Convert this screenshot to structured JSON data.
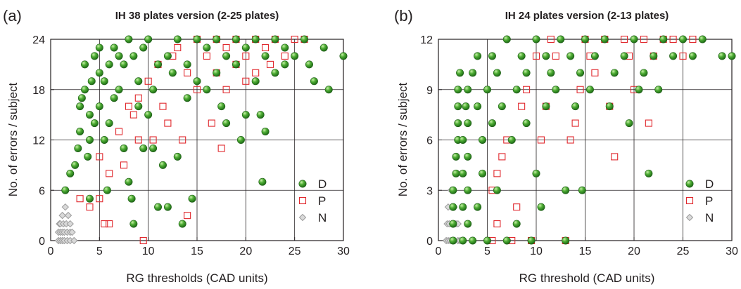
{
  "colors": {
    "D": "#3f9e2f",
    "P": "#e0282d",
    "N": "#9b9b9b",
    "axis": "#231f20"
  },
  "chart_data": [
    {
      "type": "scatter",
      "panel_label": "(a)",
      "title": "IH 38 plates version (2-25 plates)",
      "xlabel": "RG thresholds (CAD units)",
      "ylabel": "No. of errors / subject",
      "xlim": [
        0,
        30
      ],
      "ylim": [
        0,
        24
      ],
      "xticks": [
        0,
        5,
        10,
        15,
        20,
        25,
        30
      ],
      "yticks": [
        0,
        6,
        12,
        18,
        24
      ],
      "grid": true,
      "legend_position": "bottom-right",
      "series": [
        {
          "name": "D",
          "points": [
            [
              1.5,
              6
            ],
            [
              2,
              8
            ],
            [
              2.5,
              9
            ],
            [
              2.8,
              11
            ],
            [
              3,
              13
            ],
            [
              3,
              16
            ],
            [
              3.2,
              17
            ],
            [
              3.5,
              18
            ],
            [
              3.5,
              21
            ],
            [
              3.8,
              10
            ],
            [
              4,
              5
            ],
            [
              4,
              12
            ],
            [
              4,
              15
            ],
            [
              4.2,
              19
            ],
            [
              4.5,
              22
            ],
            [
              4.5,
              14
            ],
            [
              5,
              20
            ],
            [
              5,
              16
            ],
            [
              5,
              23
            ],
            [
              5.5,
              19
            ],
            [
              5.5,
              12
            ],
            [
              5.8,
              6
            ],
            [
              6,
              21
            ],
            [
              6,
              14
            ],
            [
              6.5,
              23
            ],
            [
              6.5,
              17
            ],
            [
              7,
              22
            ],
            [
              7,
              18
            ],
            [
              7.5,
              21
            ],
            [
              7.5,
              11
            ],
            [
              8,
              24
            ],
            [
              8,
              7
            ],
            [
              8.3,
              5
            ],
            [
              8.5,
              22
            ],
            [
              8.5,
              2
            ],
            [
              9,
              19
            ],
            [
              9,
              16
            ],
            [
              9.5,
              23
            ],
            [
              9.5,
              11
            ],
            [
              10,
              24
            ],
            [
              10,
              15
            ],
            [
              10.5,
              18
            ],
            [
              10.5,
              11
            ],
            [
              11,
              21
            ],
            [
              11,
              4
            ],
            [
              11.5,
              9
            ],
            [
              12,
              22
            ],
            [
              12,
              4
            ],
            [
              12.5,
              20
            ],
            [
              13,
              24
            ],
            [
              13,
              10
            ],
            [
              13.5,
              2
            ],
            [
              14,
              21
            ],
            [
              14,
              17
            ],
            [
              14.5,
              5
            ],
            [
              15,
              24
            ],
            [
              15,
              19
            ],
            [
              16,
              23
            ],
            [
              16,
              18
            ],
            [
              17,
              24
            ],
            [
              17,
              20
            ],
            [
              17.5,
              16
            ],
            [
              18,
              22
            ],
            [
              18,
              14
            ],
            [
              19,
              24
            ],
            [
              19,
              21
            ],
            [
              19.5,
              12
            ],
            [
              20,
              23
            ],
            [
              20,
              15
            ],
            [
              21,
              24
            ],
            [
              21,
              19
            ],
            [
              21.5,
              15
            ],
            [
              21.7,
              7
            ],
            [
              22,
              22
            ],
            [
              22,
              13
            ],
            [
              23,
              24
            ],
            [
              23,
              20
            ],
            [
              24,
              23
            ],
            [
              24,
              21
            ],
            [
              25,
              22
            ],
            [
              26,
              24
            ],
            [
              26.5,
              21
            ],
            [
              27,
              19
            ],
            [
              28,
              23
            ],
            [
              28.5,
              18
            ],
            [
              30,
              22
            ]
          ]
        },
        {
          "name": "P",
          "points": [
            [
              3,
              5
            ],
            [
              4,
              4
            ],
            [
              5,
              5
            ],
            [
              5,
              10
            ],
            [
              5.5,
              2
            ],
            [
              6,
              2
            ],
            [
              6,
              8
            ],
            [
              7,
              13
            ],
            [
              7.5,
              9
            ],
            [
              8,
              16
            ],
            [
              8.5,
              15
            ],
            [
              9,
              17
            ],
            [
              9,
              12
            ],
            [
              9.5,
              0
            ],
            [
              10,
              19
            ],
            [
              10.5,
              12
            ],
            [
              11,
              21
            ],
            [
              11.5,
              16
            ],
            [
              12,
              14
            ],
            [
              12.5,
              22
            ],
            [
              13,
              23
            ],
            [
              13.5,
              12
            ],
            [
              14,
              20
            ],
            [
              14,
              3
            ],
            [
              15,
              24
            ],
            [
              15,
              18
            ],
            [
              16,
              22
            ],
            [
              16.5,
              14
            ],
            [
              17,
              24
            ],
            [
              17,
              20
            ],
            [
              17.5,
              11
            ],
            [
              18,
              23
            ],
            [
              18,
              18
            ],
            [
              19,
              24
            ],
            [
              19,
              21
            ],
            [
              20,
              22
            ],
            [
              20,
              19
            ],
            [
              21,
              24
            ],
            [
              21,
              20
            ],
            [
              22,
              23
            ],
            [
              22.5,
              21
            ],
            [
              23,
              24
            ],
            [
              24,
              22
            ],
            [
              25,
              24
            ],
            [
              26,
              24
            ]
          ]
        },
        {
          "name": "N",
          "points": [
            [
              0.8,
              0
            ],
            [
              0.8,
              1
            ],
            [
              0.9,
              2
            ],
            [
              1,
              0
            ],
            [
              1,
              1
            ],
            [
              1,
              2
            ],
            [
              1.2,
              0
            ],
            [
              1.2,
              1
            ],
            [
              1.2,
              3
            ],
            [
              1.3,
              2
            ],
            [
              1.4,
              0
            ],
            [
              1.4,
              1
            ],
            [
              1.5,
              4
            ],
            [
              1.6,
              2
            ],
            [
              1.7,
              0
            ],
            [
              1.7,
              1
            ],
            [
              1.8,
              3
            ],
            [
              2,
              0
            ],
            [
              2,
              1
            ],
            [
              2,
              2
            ],
            [
              2.2,
              1
            ],
            [
              2.4,
              0
            ]
          ]
        }
      ]
    },
    {
      "type": "scatter",
      "panel_label": "(b)",
      "title": "IH 24 plates version (2-13 plates)",
      "xlabel": "RG threshold (CAD units)",
      "ylabel": "No. of errors / subject",
      "xlim": [
        0,
        30
      ],
      "ylim": [
        0,
        12
      ],
      "xticks": [
        0,
        5,
        10,
        15,
        20,
        25,
        30
      ],
      "yticks": [
        0,
        3,
        6,
        9,
        12
      ],
      "grid": true,
      "legend_position": "bottom-right",
      "series": [
        {
          "name": "D",
          "points": [
            [
              1.5,
              0
            ],
            [
              1.5,
              1
            ],
            [
              1.5,
              2
            ],
            [
              1.5,
              3
            ],
            [
              1.8,
              4
            ],
            [
              1.8,
              5
            ],
            [
              2,
              6
            ],
            [
              2,
              7
            ],
            [
              2,
              8
            ],
            [
              2,
              9
            ],
            [
              2.2,
              10
            ],
            [
              2.5,
              0
            ],
            [
              2.5,
              2
            ],
            [
              2.5,
              4
            ],
            [
              2.5,
              6
            ],
            [
              2.8,
              8
            ],
            [
              3,
              1
            ],
            [
              3,
              3
            ],
            [
              3,
              5
            ],
            [
              3,
              7
            ],
            [
              3,
              9
            ],
            [
              3.5,
              0
            ],
            [
              3.5,
              10
            ],
            [
              4,
              2
            ],
            [
              4,
              8
            ],
            [
              4,
              11
            ],
            [
              4.5,
              4
            ],
            [
              4.5,
              6
            ],
            [
              5,
              0
            ],
            [
              5,
              9
            ],
            [
              5.5,
              7
            ],
            [
              5.5,
              11
            ],
            [
              6,
              3
            ],
            [
              6,
              10
            ],
            [
              6.5,
              8
            ],
            [
              7,
              0
            ],
            [
              7,
              12
            ],
            [
              7.5,
              6
            ],
            [
              8,
              1
            ],
            [
              8,
              9
            ],
            [
              8.5,
              11
            ],
            [
              9,
              7
            ],
            [
              9,
              10
            ],
            [
              9.5,
              0
            ],
            [
              10,
              4
            ],
            [
              10,
              12
            ],
            [
              10.5,
              2
            ],
            [
              11,
              8
            ],
            [
              11,
              11
            ],
            [
              11.5,
              10
            ],
            [
              12,
              9
            ],
            [
              12.5,
              12
            ],
            [
              13,
              0
            ],
            [
              13,
              3
            ],
            [
              13.5,
              11
            ],
            [
              14,
              8
            ],
            [
              14.5,
              10
            ],
            [
              14.7,
              3
            ],
            [
              15,
              12
            ],
            [
              15.5,
              9
            ],
            [
              16,
              11
            ],
            [
              17,
              12
            ],
            [
              17.5,
              8
            ],
            [
              18,
              10
            ],
            [
              19,
              11
            ],
            [
              19.5,
              7
            ],
            [
              20,
              12
            ],
            [
              20.5,
              9
            ],
            [
              21,
              10
            ],
            [
              21.5,
              4
            ],
            [
              22,
              11
            ],
            [
              22.5,
              9
            ],
            [
              23,
              12
            ],
            [
              24,
              11
            ],
            [
              25,
              12
            ],
            [
              26,
              11
            ],
            [
              27,
              12
            ],
            [
              29,
              11
            ],
            [
              30,
              11
            ]
          ]
        },
        {
          "name": "P",
          "points": [
            [
              5.5,
              0
            ],
            [
              5.5,
              3
            ],
            [
              6,
              1
            ],
            [
              6,
              4
            ],
            [
              6.5,
              5
            ],
            [
              7,
              6
            ],
            [
              7.5,
              0
            ],
            [
              8,
              2
            ],
            [
              8.5,
              8
            ],
            [
              9,
              9
            ],
            [
              9.5,
              0
            ],
            [
              10,
              11
            ],
            [
              10.5,
              6
            ],
            [
              11,
              8
            ],
            [
              11.5,
              12
            ],
            [
              12,
              11
            ],
            [
              13,
              0
            ],
            [
              13.5,
              6
            ],
            [
              14,
              7
            ],
            [
              14.5,
              9
            ],
            [
              15,
              12
            ],
            [
              15.5,
              11
            ],
            [
              16,
              10
            ],
            [
              17,
              12
            ],
            [
              17.5,
              8
            ],
            [
              18,
              5
            ],
            [
              19,
              12
            ],
            [
              19.5,
              11
            ],
            [
              20,
              9
            ],
            [
              21,
              12
            ],
            [
              21.5,
              7
            ],
            [
              22,
              11
            ],
            [
              23,
              12
            ],
            [
              24,
              12
            ],
            [
              25,
              11
            ],
            [
              26,
              12
            ]
          ]
        },
        {
          "name": "N",
          "points": [
            [
              0.8,
              0
            ],
            [
              0.9,
              1
            ],
            [
              1,
              0
            ],
            [
              1,
              2
            ],
            [
              1.1,
              1
            ],
            [
              1.2,
              0
            ],
            [
              1.3,
              3
            ],
            [
              1.4,
              1
            ],
            [
              1.5,
              0
            ],
            [
              1.6,
              2
            ],
            [
              1.7,
              0
            ],
            [
              1.8,
              1
            ],
            [
              2,
              0
            ],
            [
              2,
              1
            ],
            [
              2.2,
              0
            ]
          ]
        }
      ]
    }
  ]
}
